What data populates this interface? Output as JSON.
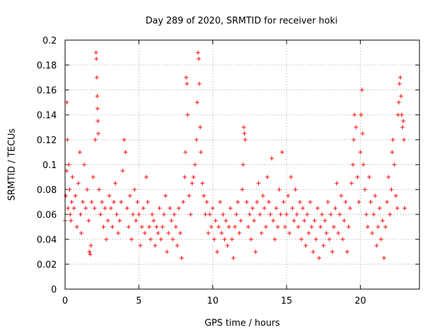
{
  "chart_data": {
    "type": "scatter",
    "title": "Day 289 of 2020, SRMTID for receiver hoki",
    "xlabel": "GPS time / hours",
    "ylabel": "SRMTID / TECUs",
    "xlim": [
      0,
      24
    ],
    "ylim": [
      0,
      0.2
    ],
    "x_ticks": [
      0,
      5,
      10,
      15,
      20
    ],
    "x_tick_labels": [
      "0",
      "5",
      "10",
      "15",
      "20"
    ],
    "y_ticks": [
      0,
      0.02,
      0.04,
      0.06,
      0.08,
      0.1,
      0.12,
      0.14,
      0.16,
      0.18,
      0.2
    ],
    "y_tick_labels": [
      "0",
      "0.02",
      "0.04",
      "0.06",
      "0.08",
      "0.1",
      "0.12",
      "0.14",
      "0.16",
      "0.18",
      "0.2"
    ],
    "grid": true,
    "marker": "+",
    "marker_color": "#ff0000",
    "series": [
      {
        "name": "SRMTID",
        "points": [
          [
            0.0,
            0.055
          ],
          [
            0.05,
            0.075
          ],
          [
            0.1,
            0.095
          ],
          [
            0.12,
            0.15
          ],
          [
            0.15,
            0.12
          ],
          [
            0.2,
            0.065
          ],
          [
            0.25,
            0.1
          ],
          [
            0.3,
            0.08
          ],
          [
            0.35,
            0.06
          ],
          [
            0.4,
            0.055
          ],
          [
            0.45,
            0.07
          ],
          [
            0.5,
            0.09
          ],
          [
            0.6,
            0.065
          ],
          [
            0.7,
            0.075
          ],
          [
            0.8,
            0.05
          ],
          [
            0.9,
            0.085
          ],
          [
            1.0,
            0.11
          ],
          [
            1.05,
            0.06
          ],
          [
            1.1,
            0.045
          ],
          [
            1.2,
            0.07
          ],
          [
            1.3,
            0.1
          ],
          [
            1.4,
            0.065
          ],
          [
            1.5,
            0.08
          ],
          [
            1.6,
            0.055
          ],
          [
            1.65,
            0.03
          ],
          [
            1.7,
            0.028
          ],
          [
            1.75,
            0.035
          ],
          [
            1.8,
            0.07
          ],
          [
            1.9,
            0.09
          ],
          [
            2.0,
            0.065
          ],
          [
            2.05,
            0.12
          ],
          [
            2.1,
            0.19
          ],
          [
            2.12,
            0.185
          ],
          [
            2.15,
            0.17
          ],
          [
            2.18,
            0.155
          ],
          [
            2.2,
            0.145
          ],
          [
            2.22,
            0.135
          ],
          [
            2.25,
            0.125
          ],
          [
            2.3,
            0.08
          ],
          [
            2.4,
            0.06
          ],
          [
            2.5,
            0.07
          ],
          [
            2.6,
            0.05
          ],
          [
            2.7,
            0.065
          ],
          [
            2.8,
            0.04
          ],
          [
            2.9,
            0.055
          ],
          [
            3.0,
            0.075
          ],
          [
            3.1,
            0.065
          ],
          [
            3.2,
            0.05
          ],
          [
            3.3,
            0.07
          ],
          [
            3.4,
            0.085
          ],
          [
            3.5,
            0.06
          ],
          [
            3.6,
            0.045
          ],
          [
            3.7,
            0.055
          ],
          [
            3.8,
            0.07
          ],
          [
            3.9,
            0.095
          ],
          [
            4.0,
            0.12
          ],
          [
            4.1,
            0.11
          ],
          [
            4.2,
            0.065
          ],
          [
            4.3,
            0.05
          ],
          [
            4.4,
            0.075
          ],
          [
            4.5,
            0.04
          ],
          [
            4.6,
            0.06
          ],
          [
            4.7,
            0.08
          ],
          [
            4.8,
            0.055
          ],
          [
            4.9,
            0.07
          ],
          [
            5.0,
            0.06
          ],
          [
            5.1,
            0.035
          ],
          [
            5.2,
            0.05
          ],
          [
            5.3,
            0.065
          ],
          [
            5.4,
            0.045
          ],
          [
            5.5,
            0.09
          ],
          [
            5.6,
            0.07
          ],
          [
            5.7,
            0.05
          ],
          [
            5.8,
            0.04
          ],
          [
            5.9,
            0.06
          ],
          [
            6.0,
            0.055
          ],
          [
            6.1,
            0.035
          ],
          [
            6.2,
            0.05
          ],
          [
            6.3,
            0.045
          ],
          [
            6.4,
            0.065
          ],
          [
            6.5,
            0.04
          ],
          [
            6.6,
            0.05
          ],
          [
            6.7,
            0.06
          ],
          [
            6.8,
            0.075
          ],
          [
            6.9,
            0.03
          ],
          [
            7.0,
            0.045
          ],
          [
            7.1,
            0.065
          ],
          [
            7.2,
            0.055
          ],
          [
            7.3,
            0.04
          ],
          [
            7.4,
            0.06
          ],
          [
            7.5,
            0.05
          ],
          [
            7.6,
            0.035
          ],
          [
            7.7,
            0.065
          ],
          [
            7.8,
            0.045
          ],
          [
            7.9,
            0.025
          ],
          [
            8.0,
            0.07
          ],
          [
            8.1,
            0.09
          ],
          [
            8.15,
            0.11
          ],
          [
            8.2,
            0.17
          ],
          [
            8.25,
            0.165
          ],
          [
            8.3,
            0.14
          ],
          [
            8.4,
            0.075
          ],
          [
            8.5,
            0.06
          ],
          [
            8.6,
            0.085
          ],
          [
            8.7,
            0.09
          ],
          [
            8.8,
            0.1
          ],
          [
            8.9,
            0.12
          ],
          [
            8.95,
            0.15
          ],
          [
            9.0,
            0.19
          ],
          [
            9.05,
            0.185
          ],
          [
            9.1,
            0.165
          ],
          [
            9.15,
            0.13
          ],
          [
            9.2,
            0.11
          ],
          [
            9.3,
            0.085
          ],
          [
            9.4,
            0.075
          ],
          [
            9.5,
            0.06
          ],
          [
            9.6,
            0.07
          ],
          [
            9.7,
            0.045
          ],
          [
            9.8,
            0.06
          ],
          [
            9.9,
            0.05
          ],
          [
            10.0,
            0.065
          ],
          [
            10.1,
            0.04
          ],
          [
            10.2,
            0.055
          ],
          [
            10.3,
            0.03
          ],
          [
            10.4,
            0.05
          ],
          [
            10.5,
            0.07
          ],
          [
            10.6,
            0.045
          ],
          [
            10.7,
            0.06
          ],
          [
            10.8,
            0.04
          ],
          [
            10.9,
            0.055
          ],
          [
            11.0,
            0.035
          ],
          [
            11.1,
            0.05
          ],
          [
            11.2,
            0.065
          ],
          [
            11.3,
            0.04
          ],
          [
            11.4,
            0.025
          ],
          [
            11.5,
            0.05
          ],
          [
            11.6,
            0.06
          ],
          [
            11.7,
            0.07
          ],
          [
            11.8,
            0.045
          ],
          [
            11.9,
            0.055
          ],
          [
            12.0,
            0.08
          ],
          [
            12.05,
            0.1
          ],
          [
            12.1,
            0.13
          ],
          [
            12.15,
            0.125
          ],
          [
            12.2,
            0.12
          ],
          [
            12.3,
            0.07
          ],
          [
            12.4,
            0.05
          ],
          [
            12.5,
            0.06
          ],
          [
            12.6,
            0.04
          ],
          [
            12.7,
            0.065
          ],
          [
            12.8,
            0.055
          ],
          [
            12.9,
            0.03
          ],
          [
            13.0,
            0.07
          ],
          [
            13.1,
            0.085
          ],
          [
            13.2,
            0.06
          ],
          [
            13.3,
            0.045
          ],
          [
            13.4,
            0.075
          ],
          [
            13.5,
            0.065
          ],
          [
            13.6,
            0.05
          ],
          [
            13.7,
            0.09
          ],
          [
            13.8,
            0.07
          ],
          [
            13.9,
            0.06
          ],
          [
            14.0,
            0.105
          ],
          [
            14.1,
            0.055
          ],
          [
            14.2,
            0.04
          ],
          [
            14.3,
            0.065
          ],
          [
            14.4,
            0.05
          ],
          [
            14.5,
            0.08
          ],
          [
            14.6,
            0.06
          ],
          [
            14.7,
            0.11
          ],
          [
            14.8,
            0.07
          ],
          [
            14.9,
            0.05
          ],
          [
            15.0,
            0.06
          ],
          [
            15.1,
            0.075
          ],
          [
            15.2,
            0.045
          ],
          [
            15.3,
            0.09
          ],
          [
            15.4,
            0.065
          ],
          [
            15.5,
            0.055
          ],
          [
            15.6,
            0.08
          ],
          [
            15.7,
            0.06
          ],
          [
            15.8,
            0.05
          ],
          [
            15.9,
            0.07
          ],
          [
            16.0,
            0.04
          ],
          [
            16.1,
            0.065
          ],
          [
            16.2,
            0.055
          ],
          [
            16.3,
            0.035
          ],
          [
            16.4,
            0.06
          ],
          [
            16.5,
            0.045
          ],
          [
            16.6,
            0.07
          ],
          [
            16.7,
            0.05
          ],
          [
            16.8,
            0.03
          ],
          [
            16.9,
            0.055
          ],
          [
            17.0,
            0.04
          ],
          [
            17.1,
            0.065
          ],
          [
            17.2,
            0.025
          ],
          [
            17.3,
            0.05
          ],
          [
            17.4,
            0.06
          ],
          [
            17.5,
            0.035
          ],
          [
            17.6,
            0.055
          ],
          [
            17.7,
            0.045
          ],
          [
            17.8,
            0.07
          ],
          [
            17.9,
            0.04
          ],
          [
            18.0,
            0.06
          ],
          [
            18.1,
            0.03
          ],
          [
            18.2,
            0.05
          ],
          [
            18.3,
            0.065
          ],
          [
            18.4,
            0.085
          ],
          [
            18.5,
            0.045
          ],
          [
            18.6,
            0.06
          ],
          [
            18.7,
            0.075
          ],
          [
            18.8,
            0.04
          ],
          [
            18.9,
            0.055
          ],
          [
            19.0,
            0.07
          ],
          [
            19.1,
            0.03
          ],
          [
            19.2,
            0.05
          ],
          [
            19.3,
            0.065
          ],
          [
            19.4,
            0.085
          ],
          [
            19.5,
            0.1
          ],
          [
            19.55,
            0.12
          ],
          [
            19.6,
            0.14
          ],
          [
            19.7,
            0.13
          ],
          [
            19.8,
            0.09
          ],
          [
            19.9,
            0.07
          ],
          [
            20.0,
            0.11
          ],
          [
            20.05,
            0.14
          ],
          [
            20.1,
            0.16
          ],
          [
            20.15,
            0.125
          ],
          [
            20.2,
            0.1
          ],
          [
            20.3,
            0.08
          ],
          [
            20.4,
            0.06
          ],
          [
            20.5,
            0.05
          ],
          [
            20.6,
            0.09
          ],
          [
            20.7,
            0.07
          ],
          [
            20.8,
            0.045
          ],
          [
            20.9,
            0.06
          ],
          [
            21.0,
            0.075
          ],
          [
            21.1,
            0.035
          ],
          [
            21.2,
            0.05
          ],
          [
            21.3,
            0.065
          ],
          [
            21.4,
            0.04
          ],
          [
            21.5,
            0.055
          ],
          [
            21.6,
            0.025
          ],
          [
            21.7,
            0.05
          ],
          [
            21.8,
            0.07
          ],
          [
            21.9,
            0.09
          ],
          [
            22.0,
            0.06
          ],
          [
            22.1,
            0.08
          ],
          [
            22.15,
            0.11
          ],
          [
            22.2,
            0.12
          ],
          [
            22.3,
            0.1
          ],
          [
            22.4,
            0.075
          ],
          [
            22.5,
            0.065
          ],
          [
            22.55,
            0.14
          ],
          [
            22.6,
            0.15
          ],
          [
            22.65,
            0.165
          ],
          [
            22.7,
            0.17
          ],
          [
            22.75,
            0.155
          ],
          [
            22.8,
            0.14
          ],
          [
            22.85,
            0.13
          ],
          [
            22.9,
            0.135
          ],
          [
            22.95,
            0.12
          ],
          [
            23.0,
            0.065
          ]
        ]
      }
    ]
  }
}
